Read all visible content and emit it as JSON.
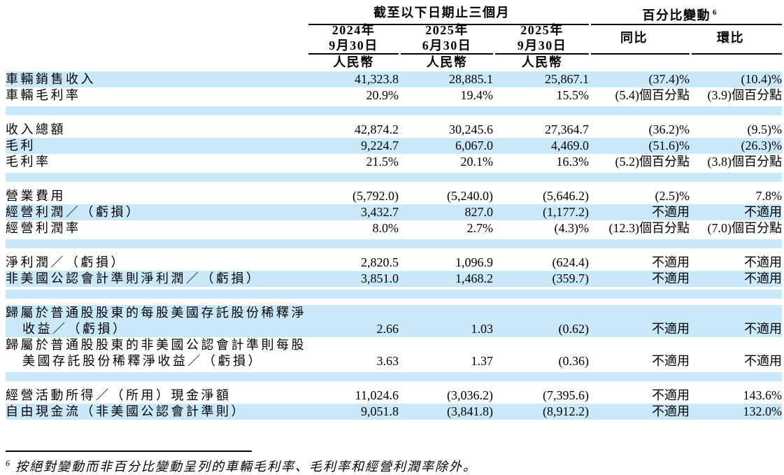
{
  "colors": {
    "highlight": "#c9e9fa",
    "line": "#000000"
  },
  "table": {
    "group_period": "截至以下日期止三個月",
    "group_change": "百分比變動",
    "group_change_sup": "6",
    "date_columns": [
      {
        "line1": "2024年",
        "line2": "9月30日",
        "currency": "人民幣"
      },
      {
        "line1": "2025年",
        "line2": "6月30日",
        "currency": "人民幣"
      },
      {
        "line1": "2025年",
        "line2": "9月30日",
        "currency": "人民幣"
      }
    ],
    "change_columns": [
      {
        "label": "同比"
      },
      {
        "label": "環比"
      }
    ],
    "rows": [
      {
        "type": "data",
        "highlight": true,
        "label": "車輛銷售收入",
        "values": [
          "41,323.8",
          "28,885.1",
          "25,867.1",
          "(37.4)%",
          "(10.4)%"
        ]
      },
      {
        "type": "data",
        "highlight": false,
        "label": "車輛毛利率",
        "values": [
          "20.9%",
          "19.4%",
          "15.5%",
          "(5.4)個百分點",
          "(3.9)個百分點"
        ]
      },
      {
        "type": "spacer"
      },
      {
        "type": "data",
        "highlight": false,
        "label": "收入總額",
        "values": [
          "42,874.2",
          "30,245.6",
          "27,364.7",
          "(36.2)%",
          "(9.5)%"
        ]
      },
      {
        "type": "data",
        "highlight": true,
        "label": "毛利",
        "values": [
          "9,224.7",
          "6,067.0",
          "4,469.0",
          "(51.6)%",
          "(26.3)%"
        ]
      },
      {
        "type": "data",
        "highlight": false,
        "label": "毛利率",
        "values": [
          "21.5%",
          "20.1%",
          "16.3%",
          "(5.2)個百分點",
          "(3.8)個百分點"
        ]
      },
      {
        "type": "spacer"
      },
      {
        "type": "data",
        "highlight": false,
        "label": "營業費用",
        "values": [
          "(5,792.0)",
          "(5,240.0)",
          "(5,646.2)",
          "(2.5)%",
          "7.8%"
        ]
      },
      {
        "type": "data",
        "highlight": true,
        "label": "經營利潤／（虧損）",
        "values": [
          "3,432.7",
          "827.0",
          "(1,177.2)",
          "不適用",
          "不適用"
        ]
      },
      {
        "type": "data",
        "highlight": false,
        "label": "經營利潤率",
        "values": [
          "8.0%",
          "2.7%",
          "(4.3)%",
          "(12.3)個百分點",
          "(7.0)個百分點"
        ]
      },
      {
        "type": "spacer"
      },
      {
        "type": "data",
        "highlight": false,
        "label": "淨利潤／（虧損）",
        "values": [
          "2,820.5",
          "1,096.9",
          "(624.4)",
          "不適用",
          "不適用"
        ]
      },
      {
        "type": "data",
        "highlight": true,
        "label": "非美國公認會計準則淨利潤／（虧損）",
        "values": [
          "3,851.0",
          "1,468.2",
          "(359.7)",
          "不適用",
          "不適用"
        ]
      },
      {
        "type": "spacer"
      },
      {
        "type": "data",
        "highlight": true,
        "multiline": true,
        "label": "歸屬於普通股股東的每股美國存託股份稀釋淨",
        "label2": "收益／（虧損）",
        "values": [
          "2.66",
          "1.03",
          "(0.62)",
          "不適用",
          "不適用"
        ]
      },
      {
        "type": "data",
        "highlight": false,
        "multiline": true,
        "label": "歸屬於普通股股東的非美國公認會計準則每股",
        "label2": "美國存託股份稀釋淨收益／（虧損）",
        "values": [
          "3.63",
          "1.37",
          "(0.36)",
          "不適用",
          "不適用"
        ]
      },
      {
        "type": "spacer"
      },
      {
        "type": "data",
        "highlight": false,
        "label": "經營活動所得／（所用）現金淨額",
        "values": [
          "11,024.6",
          "(3,036.2)",
          "(7,395.6)",
          "不適用",
          "143.6%"
        ]
      },
      {
        "type": "data",
        "highlight": true,
        "label": "自由現金流（非美國公認會計準則）",
        "values": [
          "9,051.8",
          "(3,841.8)",
          "(8,912.2)",
          "不適用",
          "132.0%"
        ]
      }
    ]
  },
  "footnote": {
    "sup": "6",
    "text": "按絕對變動而非百分比變動呈列的車輛毛利率、毛利率和經營利潤率除外。"
  }
}
